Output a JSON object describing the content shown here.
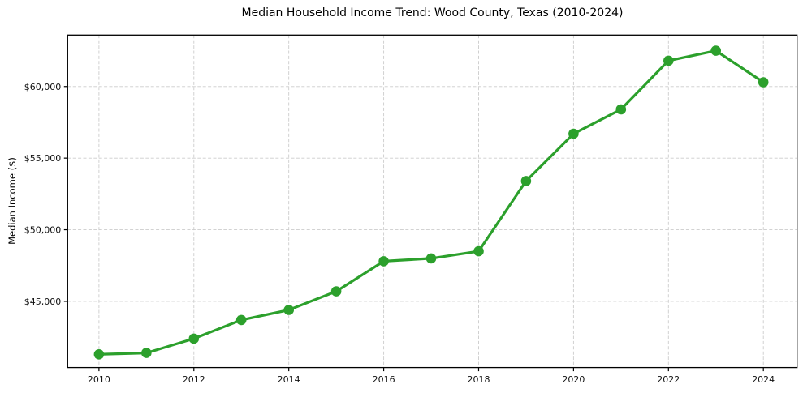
{
  "chart_data": {
    "type": "line",
    "title": "Median Household Income Trend: Wood County, Texas (2010-2024)",
    "xlabel": "",
    "ylabel": "Median Income ($)",
    "x": [
      2010,
      2011,
      2012,
      2013,
      2014,
      2015,
      2016,
      2017,
      2018,
      2019,
      2020,
      2021,
      2022,
      2023,
      2024
    ],
    "series": [
      {
        "name": "Median Household Income",
        "values": [
          41300,
          41400,
          42400,
          43700,
          44400,
          45700,
          47800,
          48000,
          48500,
          53400,
          56700,
          58400,
          61800,
          62500,
          60300
        ]
      }
    ],
    "xticks": [
      2010,
      2012,
      2014,
      2016,
      2018,
      2020,
      2022,
      2024
    ],
    "xtick_labels": [
      "2010",
      "2012",
      "2014",
      "2016",
      "2018",
      "2020",
      "2022",
      "2024"
    ],
    "yticks": [
      45000,
      50000,
      55000,
      60000
    ],
    "ytick_labels": [
      "$45,000",
      "$50,000",
      "$55,000",
      "$60,000"
    ],
    "xlim": [
      2009.34,
      2024.71
    ],
    "ylim": [
      40380,
      63590
    ],
    "grid": true,
    "legend": "none",
    "line_color": "#2ca02c",
    "marker": "circle",
    "background_color": "#ffffff",
    "grid_color": "#cccccc"
  }
}
